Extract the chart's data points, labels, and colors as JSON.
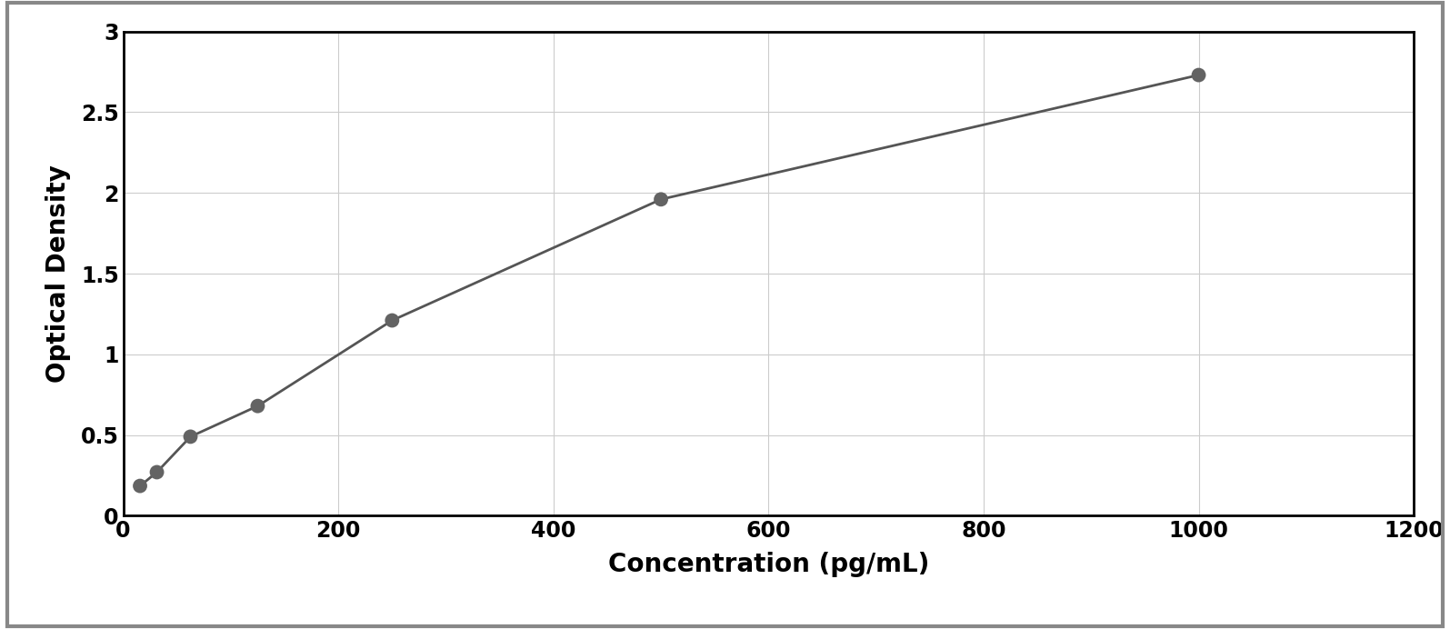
{
  "x_data": [
    15.6,
    31.25,
    62.5,
    125,
    250,
    500,
    1000
  ],
  "y_data": [
    0.185,
    0.27,
    0.49,
    0.68,
    1.21,
    1.96,
    2.73
  ],
  "xlabel": "Concentration (pg/mL)",
  "ylabel": "Optical Density",
  "xlim": [
    0,
    1200
  ],
  "ylim": [
    0,
    3
  ],
  "xticks": [
    0,
    200,
    400,
    600,
    800,
    1000,
    1200
  ],
  "yticks": [
    0,
    0.5,
    1.0,
    1.5,
    2.0,
    2.5,
    3.0
  ],
  "dot_color": "#636363",
  "line_color": "#555555",
  "background_color": "#ffffff",
  "plot_bg_color": "#ffffff",
  "grid_color": "#cccccc",
  "border_color": "#000000",
  "outer_border_color": "#888888",
  "xlabel_fontsize": 20,
  "ylabel_fontsize": 20,
  "tick_fontsize": 17,
  "dot_size": 130,
  "line_width": 2.0
}
